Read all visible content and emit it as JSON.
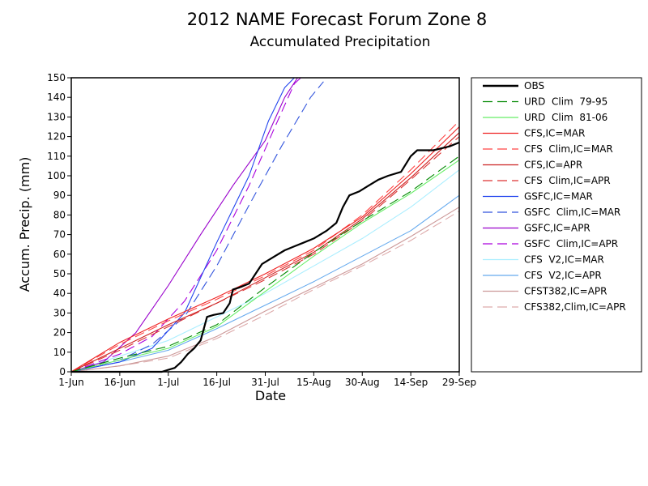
{
  "chart_data": {
    "type": "line",
    "title": "2012 NAME Forecast Forum Zone 8",
    "subtitle": "Accumulated Precipitation",
    "xlabel": "Date",
    "ylabel": "Accum. Precip. (mm)",
    "xlim": [
      "2012-06-01",
      "2012-09-29"
    ],
    "ylim": [
      0,
      150
    ],
    "x_ticks": [
      {
        "date": "2012-06-01",
        "label": "1-Jun"
      },
      {
        "date": "2012-06-16",
        "label": "16-Jun"
      },
      {
        "date": "2012-07-01",
        "label": "1-Jul"
      },
      {
        "date": "2012-07-16",
        "label": "16-Jul"
      },
      {
        "date": "2012-07-31",
        "label": "31-Jul"
      },
      {
        "date": "2012-08-15",
        "label": "15-Aug"
      },
      {
        "date": "2012-08-30",
        "label": "30-Aug"
      },
      {
        "date": "2012-09-14",
        "label": "14-Sep"
      },
      {
        "date": "2012-09-29",
        "label": "29-Sep"
      }
    ],
    "y_ticks": [
      0,
      10,
      20,
      30,
      40,
      50,
      60,
      70,
      80,
      90,
      100,
      110,
      120,
      130,
      140,
      150
    ],
    "grid": false,
    "legend_position": "right",
    "series": [
      {
        "name": "OBS",
        "color": "#000000",
        "dash": "solid",
        "points": [
          [
            "2012-06-01",
            0
          ],
          [
            "2012-06-29",
            0
          ],
          [
            "2012-07-01",
            1
          ],
          [
            "2012-07-03",
            2
          ],
          [
            "2012-07-05",
            5
          ],
          [
            "2012-07-07",
            9
          ],
          [
            "2012-07-09",
            12
          ],
          [
            "2012-07-11",
            16
          ],
          [
            "2012-07-13",
            28
          ],
          [
            "2012-07-15",
            29
          ],
          [
            "2012-07-18",
            30
          ],
          [
            "2012-07-20",
            35
          ],
          [
            "2012-07-21",
            42
          ],
          [
            "2012-07-23",
            43
          ],
          [
            "2012-07-26",
            45
          ],
          [
            "2012-07-28",
            50
          ],
          [
            "2012-07-30",
            55
          ],
          [
            "2012-08-01",
            57
          ],
          [
            "2012-08-03",
            59
          ],
          [
            "2012-08-06",
            62
          ],
          [
            "2012-08-09",
            64
          ],
          [
            "2012-08-12",
            66
          ],
          [
            "2012-08-15",
            68
          ],
          [
            "2012-08-19",
            72
          ],
          [
            "2012-08-22",
            76
          ],
          [
            "2012-08-24",
            84
          ],
          [
            "2012-08-26",
            90
          ],
          [
            "2012-08-29",
            92
          ],
          [
            "2012-09-01",
            95
          ],
          [
            "2012-09-04",
            98
          ],
          [
            "2012-09-07",
            100
          ],
          [
            "2012-09-11",
            102
          ],
          [
            "2012-09-14",
            110
          ],
          [
            "2012-09-16",
            113
          ],
          [
            "2012-09-21",
            113
          ],
          [
            "2012-09-26",
            115
          ],
          [
            "2012-09-29",
            117
          ]
        ]
      },
      {
        "name": "URD  Clim  79-95",
        "color": "#008800",
        "dash": "dashed",
        "points": [
          [
            "2012-06-01",
            0
          ],
          [
            "2012-06-16",
            7
          ],
          [
            "2012-07-01",
            13
          ],
          [
            "2012-07-16",
            24
          ],
          [
            "2012-07-31",
            43
          ],
          [
            "2012-08-15",
            61
          ],
          [
            "2012-08-30",
            77
          ],
          [
            "2012-09-14",
            92
          ],
          [
            "2012-09-29",
            110
          ]
        ]
      },
      {
        "name": "URD  Clim  81-06",
        "color": "#66ee66",
        "dash": "solid",
        "points": [
          [
            "2012-06-01",
            0
          ],
          [
            "2012-06-16",
            6
          ],
          [
            "2012-07-01",
            12
          ],
          [
            "2012-07-16",
            23
          ],
          [
            "2012-07-31",
            41
          ],
          [
            "2012-08-15",
            59
          ],
          [
            "2012-08-30",
            76
          ],
          [
            "2012-09-14",
            91
          ],
          [
            "2012-09-29",
            108
          ]
        ]
      },
      {
        "name": "CFS,IC=MAR",
        "color": "#ee2222",
        "dash": "solid",
        "points": [
          [
            "2012-06-01",
            0
          ],
          [
            "2012-06-16",
            15
          ],
          [
            "2012-07-01",
            27
          ],
          [
            "2012-07-16",
            38
          ],
          [
            "2012-07-31",
            50
          ],
          [
            "2012-08-15",
            63
          ],
          [
            "2012-08-30",
            79
          ],
          [
            "2012-09-14",
            101
          ],
          [
            "2012-09-29",
            125
          ]
        ]
      },
      {
        "name": "CFS  Clim,IC=MAR",
        "color": "#ff4444",
        "dash": "dashed",
        "points": [
          [
            "2012-06-01",
            0
          ],
          [
            "2012-06-16",
            14
          ],
          [
            "2012-07-01",
            26
          ],
          [
            "2012-07-16",
            37
          ],
          [
            "2012-07-31",
            49
          ],
          [
            "2012-08-15",
            62
          ],
          [
            "2012-08-30",
            80
          ],
          [
            "2012-09-14",
            103
          ],
          [
            "2012-09-29",
            128
          ]
        ]
      },
      {
        "name": "CFS,IC=APR",
        "color": "#cc2222",
        "dash": "solid",
        "points": [
          [
            "2012-06-01",
            0
          ],
          [
            "2012-06-16",
            12
          ],
          [
            "2012-07-01",
            24
          ],
          [
            "2012-07-16",
            35
          ],
          [
            "2012-07-31",
            48
          ],
          [
            "2012-08-15",
            61
          ],
          [
            "2012-08-30",
            78
          ],
          [
            "2012-09-14",
            99
          ],
          [
            "2012-09-29",
            122
          ]
        ]
      },
      {
        "name": "CFS  Clim,IC=APR",
        "color": "#dd3333",
        "dash": "dashed",
        "points": [
          [
            "2012-06-01",
            0
          ],
          [
            "2012-06-16",
            11
          ],
          [
            "2012-07-01",
            23
          ],
          [
            "2012-07-16",
            35
          ],
          [
            "2012-07-31",
            47
          ],
          [
            "2012-08-15",
            60
          ],
          [
            "2012-08-30",
            77
          ],
          [
            "2012-09-14",
            98
          ],
          [
            "2012-09-29",
            120
          ]
        ]
      },
      {
        "name": "GSFC,IC=MAR",
        "color": "#2244ee",
        "dash": "solid",
        "points": [
          [
            "2012-06-01",
            0
          ],
          [
            "2012-06-16",
            5
          ],
          [
            "2012-06-26",
            12
          ],
          [
            "2012-07-06",
            30
          ],
          [
            "2012-07-16",
            66
          ],
          [
            "2012-07-26",
            100
          ],
          [
            "2012-08-01",
            128
          ],
          [
            "2012-08-06",
            145
          ],
          [
            "2012-08-09",
            150
          ]
        ]
      },
      {
        "name": "GSFC  Clim,IC=MAR",
        "color": "#3355dd",
        "dash": "dashed",
        "points": [
          [
            "2012-06-01",
            0
          ],
          [
            "2012-06-16",
            6
          ],
          [
            "2012-06-26",
            14
          ],
          [
            "2012-07-06",
            28
          ],
          [
            "2012-07-16",
            54
          ],
          [
            "2012-07-26",
            85
          ],
          [
            "2012-08-05",
            115
          ],
          [
            "2012-08-14",
            140
          ],
          [
            "2012-08-18",
            148
          ]
        ]
      },
      {
        "name": "GSFC,IC=APR",
        "color": "#9900cc",
        "dash": "solid",
        "points": [
          [
            "2012-06-01",
            0
          ],
          [
            "2012-06-11",
            5
          ],
          [
            "2012-06-21",
            20
          ],
          [
            "2012-07-01",
            44
          ],
          [
            "2012-07-11",
            70
          ],
          [
            "2012-07-21",
            95
          ],
          [
            "2012-07-31",
            118
          ],
          [
            "2012-08-06",
            140
          ],
          [
            "2012-08-10",
            150
          ]
        ]
      },
      {
        "name": "GSFC  Clim,IC=APR",
        "color": "#aa00dd",
        "dash": "dashed",
        "points": [
          [
            "2012-06-01",
            0
          ],
          [
            "2012-06-16",
            9
          ],
          [
            "2012-06-26",
            18
          ],
          [
            "2012-07-06",
            36
          ],
          [
            "2012-07-16",
            62
          ],
          [
            "2012-07-26",
            95
          ],
          [
            "2012-08-03",
            125
          ],
          [
            "2012-08-09",
            147
          ],
          [
            "2012-08-11",
            150
          ]
        ]
      },
      {
        "name": "CFS  V2,IC=MAR",
        "color": "#aaeeff",
        "dash": "solid",
        "points": [
          [
            "2012-06-01",
            0
          ],
          [
            "2012-06-16",
            8
          ],
          [
            "2012-07-01",
            16
          ],
          [
            "2012-07-16",
            28
          ],
          [
            "2012-07-31",
            40
          ],
          [
            "2012-08-15",
            54
          ],
          [
            "2012-08-30",
            68
          ],
          [
            "2012-09-14",
            84
          ],
          [
            "2012-09-29",
            103
          ]
        ]
      },
      {
        "name": "CFS  V2,IC=APR",
        "color": "#66aaee",
        "dash": "solid",
        "points": [
          [
            "2012-06-01",
            0
          ],
          [
            "2012-06-16",
            5
          ],
          [
            "2012-07-01",
            11
          ],
          [
            "2012-07-16",
            22
          ],
          [
            "2012-07-31",
            34
          ],
          [
            "2012-08-15",
            46
          ],
          [
            "2012-08-30",
            59
          ],
          [
            "2012-09-14",
            72
          ],
          [
            "2012-09-29",
            90
          ]
        ]
      },
      {
        "name": "CFST382,IC=APR",
        "color": "#cc9999",
        "dash": "solid",
        "points": [
          [
            "2012-06-01",
            0
          ],
          [
            "2012-06-16",
            3
          ],
          [
            "2012-07-01",
            8
          ],
          [
            "2012-07-16",
            18
          ],
          [
            "2012-07-31",
            31
          ],
          [
            "2012-08-15",
            43
          ],
          [
            "2012-08-30",
            55
          ],
          [
            "2012-09-14",
            69
          ],
          [
            "2012-09-29",
            84
          ]
        ]
      },
      {
        "name": "CFS382,Clim,IC=APR",
        "color": "#ddaaaa",
        "dash": "dashed",
        "points": [
          [
            "2012-06-01",
            0
          ],
          [
            "2012-06-16",
            3
          ],
          [
            "2012-07-01",
            7
          ],
          [
            "2012-07-16",
            17
          ],
          [
            "2012-07-31",
            29
          ],
          [
            "2012-08-15",
            42
          ],
          [
            "2012-08-30",
            54
          ],
          [
            "2012-09-14",
            67
          ],
          [
            "2012-09-29",
            82
          ]
        ]
      }
    ]
  }
}
